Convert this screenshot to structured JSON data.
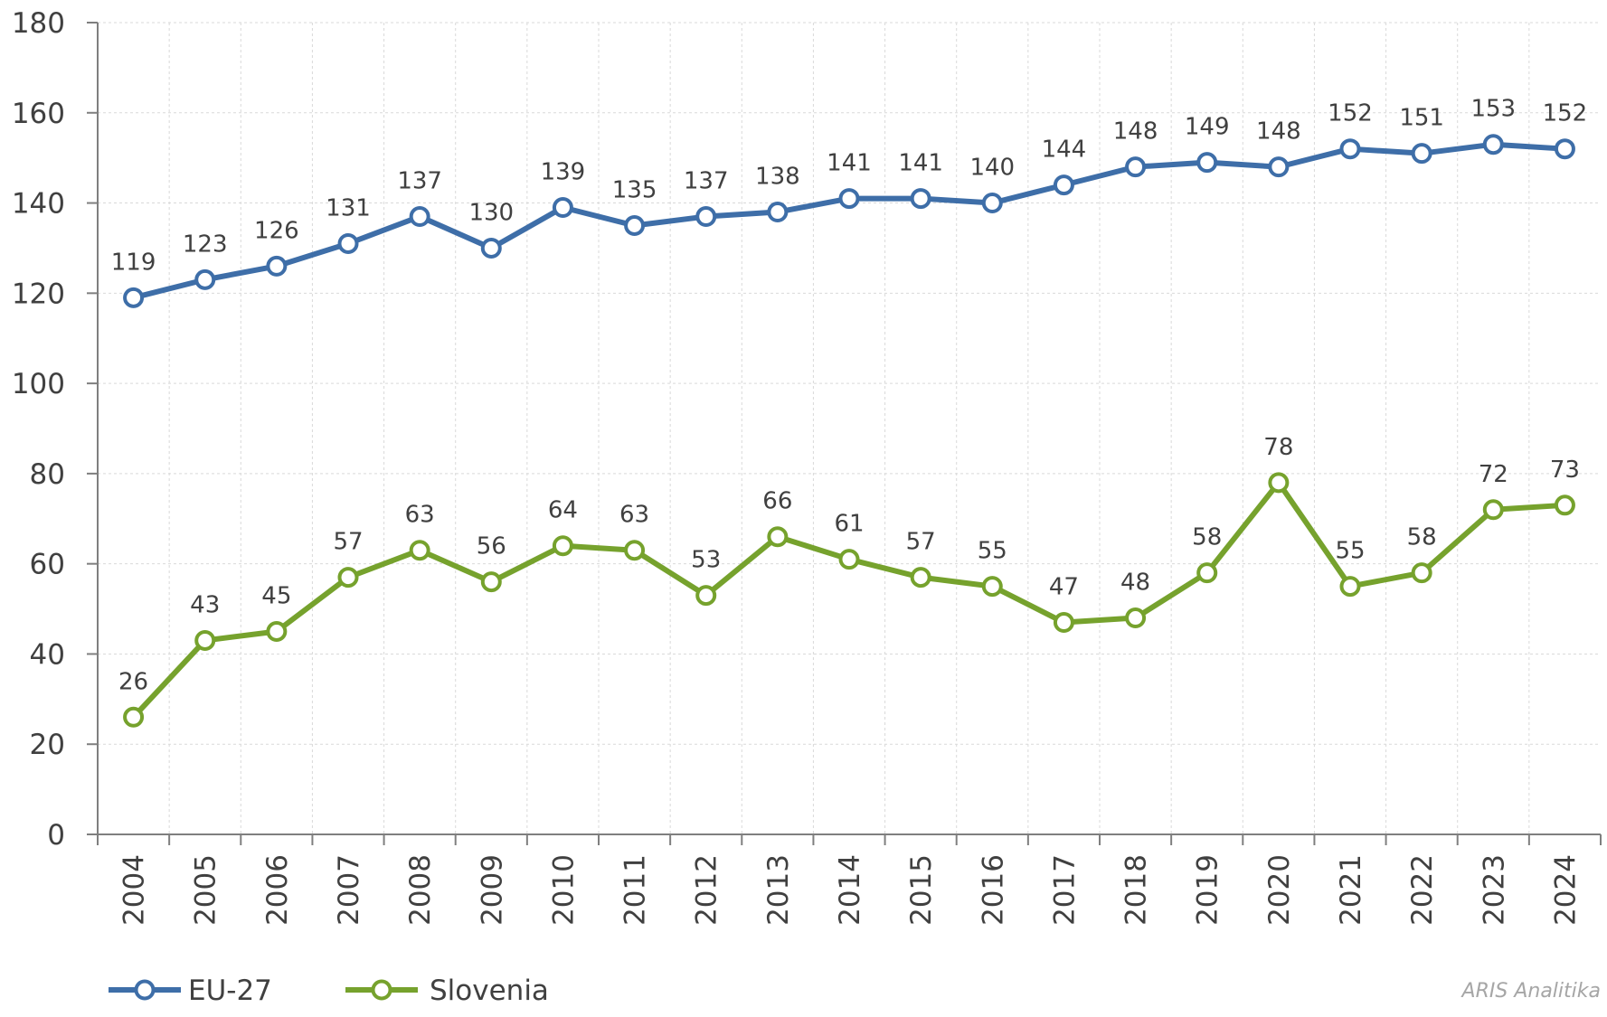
{
  "chart_data": {
    "type": "line",
    "x": [
      "2004",
      "2005",
      "2006",
      "2007",
      "2008",
      "2009",
      "2010",
      "2011",
      "2012",
      "2013",
      "2014",
      "2015",
      "2016",
      "2017",
      "2018",
      "2019",
      "2020",
      "2021",
      "2022",
      "2023",
      "2024"
    ],
    "series": [
      {
        "name": "EU-27",
        "color": "#3e6ea8",
        "values": [
          119,
          123,
          126,
          131,
          137,
          130,
          139,
          135,
          137,
          138,
          141,
          141,
          140,
          144,
          148,
          149,
          148,
          152,
          151,
          153,
          152
        ]
      },
      {
        "name": "Slovenia",
        "color": "#76a22d",
        "values": [
          26,
          43,
          45,
          57,
          63,
          56,
          64,
          63,
          53,
          66,
          61,
          57,
          55,
          47,
          48,
          58,
          78,
          55,
          58,
          72,
          73
        ]
      }
    ],
    "ylim": [
      0,
      180
    ],
    "yticks": [
      0,
      20,
      40,
      60,
      80,
      100,
      120,
      140,
      160,
      180
    ],
    "grid": true,
    "legend_position": "bottom-left",
    "data_labels": true,
    "title": "",
    "xlabel": "",
    "ylabel": ""
  },
  "credit": "ARIS Analitika"
}
